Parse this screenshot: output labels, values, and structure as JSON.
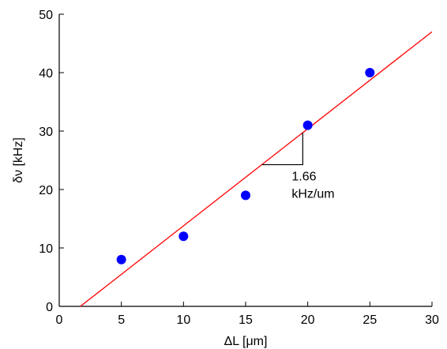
{
  "chart_data": {
    "type": "scatter",
    "xlabel": "ΔL [μm]",
    "ylabel": "δν [kHz]",
    "xlim": [
      0,
      30
    ],
    "ylim": [
      0,
      50
    ],
    "xticks": [
      "0",
      "5",
      "10",
      "15",
      "20",
      "25",
      "30"
    ],
    "yticks": [
      "0",
      "10",
      "20",
      "30",
      "40",
      "50"
    ],
    "grid": false,
    "series": [
      {
        "kind": "points",
        "color": "#0000ff",
        "x": [
          5,
          10,
          15,
          20,
          25
        ],
        "y": [
          8,
          12,
          19,
          31,
          40
        ]
      },
      {
        "kind": "fit-line",
        "color": "#ff0000",
        "x": [
          1.7,
          30
        ],
        "y": [
          0,
          47
        ]
      }
    ],
    "annotation": {
      "line1": "1.66",
      "line2": "kHz/um"
    }
  },
  "colors": {
    "points": "#0000ff",
    "fit": "#ff0000",
    "axes": "#000000"
  }
}
